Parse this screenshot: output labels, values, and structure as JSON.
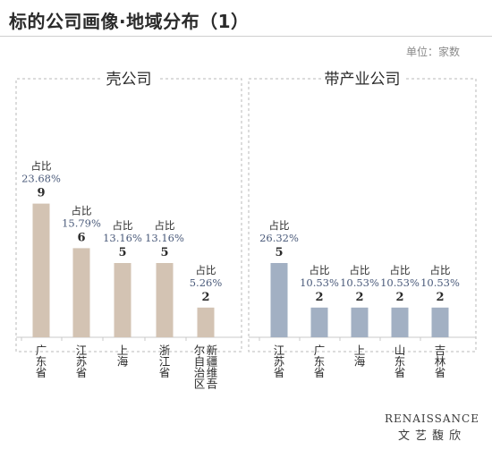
{
  "title": "标的公司画像·地域分布（1）",
  "unit": "单位：家数",
  "logo": {
    "main": "RENAISSANCE",
    "sub": "文艺馥欣"
  },
  "share_prefix": "占比",
  "colors": {
    "left_bar": "#d3c3b3",
    "right_bar": "#a2b0c3",
    "border": "#b9b9b9"
  },
  "chart_data": [
    {
      "type": "bar",
      "title": "壳公司",
      "categories": [
        "广东省",
        "江苏省",
        "上海",
        "浙江省",
        "新疆维吾尔自治区"
      ],
      "category_lines": [
        [
          "广",
          "东",
          "省"
        ],
        [
          "江",
          "苏",
          "省"
        ],
        [
          "上",
          "海"
        ],
        [
          "浙",
          "江",
          "省"
        ],
        [
          "新",
          "疆",
          "维",
          "吾"
        ],
        [
          "尔",
          "自",
          "治",
          "区"
        ]
      ],
      "values": [
        9,
        6,
        5,
        5,
        2
      ],
      "shares": [
        "23.68%",
        "15.79%",
        "13.16%",
        "13.16%",
        "5.26%"
      ]
    },
    {
      "type": "bar",
      "title": "带产业公司",
      "categories": [
        "江苏省",
        "广东省",
        "上海",
        "山东省",
        "吉林省"
      ],
      "category_lines": [
        [
          "江",
          "苏",
          "省"
        ],
        [
          "广",
          "东",
          "省"
        ],
        [
          "上",
          "海"
        ],
        [
          "山",
          "东",
          "省"
        ],
        [
          "吉",
          "林",
          "省"
        ]
      ],
      "values": [
        5,
        2,
        2,
        2,
        2
      ],
      "shares": [
        "26.32%",
        "10.53%",
        "10.53%",
        "10.53%",
        "10.53%"
      ]
    }
  ]
}
